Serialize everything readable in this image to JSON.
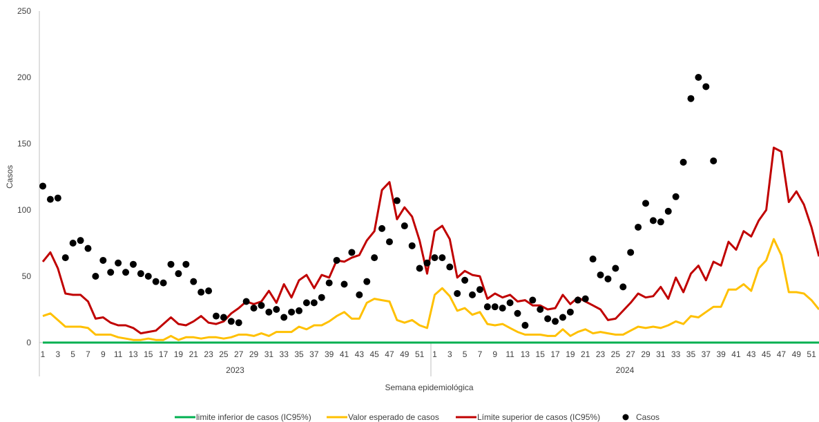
{
  "chart_data": {
    "type": "line",
    "title": "",
    "xlabel": "Semana epidemiológica",
    "ylabel": "Casos",
    "ylim": [
      0,
      250
    ],
    "yticks": [
      0,
      50,
      100,
      150,
      200,
      250
    ],
    "grid": false,
    "legend_position": "bottom",
    "years": [
      {
        "label": "2023",
        "weeks": 52
      },
      {
        "label": "2024",
        "weeks": 52
      }
    ],
    "x_tick_labels": [
      "1",
      "3",
      "5",
      "7",
      "9",
      "11",
      "13",
      "15",
      "17",
      "19",
      "21",
      "23",
      "25",
      "27",
      "29",
      "31",
      "33",
      "35",
      "37",
      "39",
      "41",
      "43",
      "45",
      "47",
      "49",
      "51",
      "1",
      "3",
      "5",
      "7",
      "9",
      "11",
      "13",
      "15",
      "17",
      "19",
      "21",
      "23",
      "25",
      "27",
      "29",
      "31",
      "33",
      "35",
      "37",
      "39",
      "41",
      "43",
      "45",
      "47",
      "49",
      "51"
    ],
    "series": [
      {
        "name": "limite inferior de casos (IC95%)",
        "kind": "line",
        "color": "#00b050",
        "values": [
          0,
          0,
          0,
          0,
          0,
          0,
          0,
          0,
          0,
          0,
          0,
          0,
          0,
          0,
          0,
          0,
          0,
          0,
          0,
          0,
          0,
          0,
          0,
          0,
          0,
          0,
          0,
          0,
          0,
          0,
          0,
          0,
          0,
          0,
          0,
          0,
          0,
          0,
          0,
          0,
          0,
          0,
          0,
          0,
          0,
          0,
          0,
          0,
          0,
          0,
          0,
          0,
          0,
          0,
          0,
          0,
          0,
          0,
          0,
          0,
          0,
          0,
          0,
          0,
          0,
          0,
          0,
          0,
          0,
          0,
          0,
          0,
          0,
          0,
          0,
          0,
          0,
          0,
          0,
          0,
          0,
          0,
          0,
          0,
          0,
          0,
          0,
          0,
          0,
          0,
          0,
          0,
          0,
          0,
          0,
          0,
          0,
          0,
          0,
          0,
          0,
          0,
          0,
          0
        ]
      },
      {
        "name": "Valor esperado de casos",
        "kind": "line",
        "color": "#ffc000",
        "values": [
          20,
          22,
          17,
          12,
          12,
          12,
          11,
          6,
          6,
          6,
          4,
          3,
          2,
          2,
          3,
          2,
          2,
          5,
          2,
          4,
          4,
          3,
          4,
          4,
          3,
          4,
          6,
          6,
          5,
          7,
          5,
          8,
          8,
          8,
          12,
          10,
          13,
          13,
          16,
          20,
          23,
          18,
          18,
          30,
          33,
          32,
          31,
          17,
          15,
          17,
          13,
          11,
          36,
          41,
          35,
          24,
          26,
          21,
          23,
          14,
          13,
          14,
          11,
          8,
          6,
          6,
          6,
          5,
          5,
          10,
          5,
          8,
          10,
          7,
          8,
          7,
          6,
          6,
          9,
          12,
          11,
          12,
          11,
          13,
          16,
          14,
          20,
          19,
          23,
          27,
          27,
          40,
          40,
          44,
          39,
          56,
          62,
          78,
          66,
          38,
          38,
          37,
          32,
          25
        ]
      },
      {
        "name": "Límite superior de casos (IC95%)",
        "kind": "line",
        "color": "#c00000",
        "values": [
          61,
          68,
          56,
          37,
          36,
          36,
          31,
          18,
          19,
          15,
          13,
          13,
          11,
          7,
          8,
          9,
          14,
          19,
          14,
          13,
          16,
          20,
          15,
          14,
          16,
          22,
          26,
          31,
          29,
          31,
          39,
          30,
          44,
          34,
          47,
          51,
          41,
          51,
          49,
          62,
          61,
          64,
          66,
          77,
          84,
          115,
          121,
          93,
          102,
          95,
          77,
          52,
          84,
          88,
          78,
          49,
          54,
          51,
          50,
          33,
          37,
          34,
          36,
          31,
          32,
          28,
          28,
          25,
          26,
          36,
          29,
          34,
          31,
          28,
          25,
          17,
          18,
          24,
          30,
          37,
          34,
          35,
          42,
          33,
          49,
          38,
          52,
          58,
          47,
          61,
          58,
          76,
          70,
          84,
          80,
          92,
          100,
          147,
          144,
          106,
          114,
          104,
          87,
          65
        ]
      },
      {
        "name": "Casos",
        "kind": "scatter",
        "color": "#000000",
        "values": [
          118,
          108,
          109,
          64,
          75,
          77,
          71,
          50,
          62,
          53,
          60,
          53,
          59,
          52,
          50,
          46,
          45,
          59,
          52,
          59,
          46,
          38,
          39,
          20,
          19,
          16,
          15,
          31,
          26,
          28,
          23,
          25,
          19,
          23,
          24,
          30,
          30,
          34,
          45,
          62,
          44,
          68,
          36,
          46,
          64,
          86,
          76,
          107,
          88,
          73,
          56,
          60,
          64,
          64,
          57,
          37,
          47,
          36,
          40,
          27,
          27,
          26,
          30,
          22,
          13,
          32,
          25,
          18,
          16,
          19,
          23,
          32,
          33,
          63,
          51,
          48,
          56,
          42,
          68,
          87,
          105,
          92,
          91,
          99,
          110,
          136,
          184,
          200,
          193,
          137
        ]
      }
    ]
  }
}
